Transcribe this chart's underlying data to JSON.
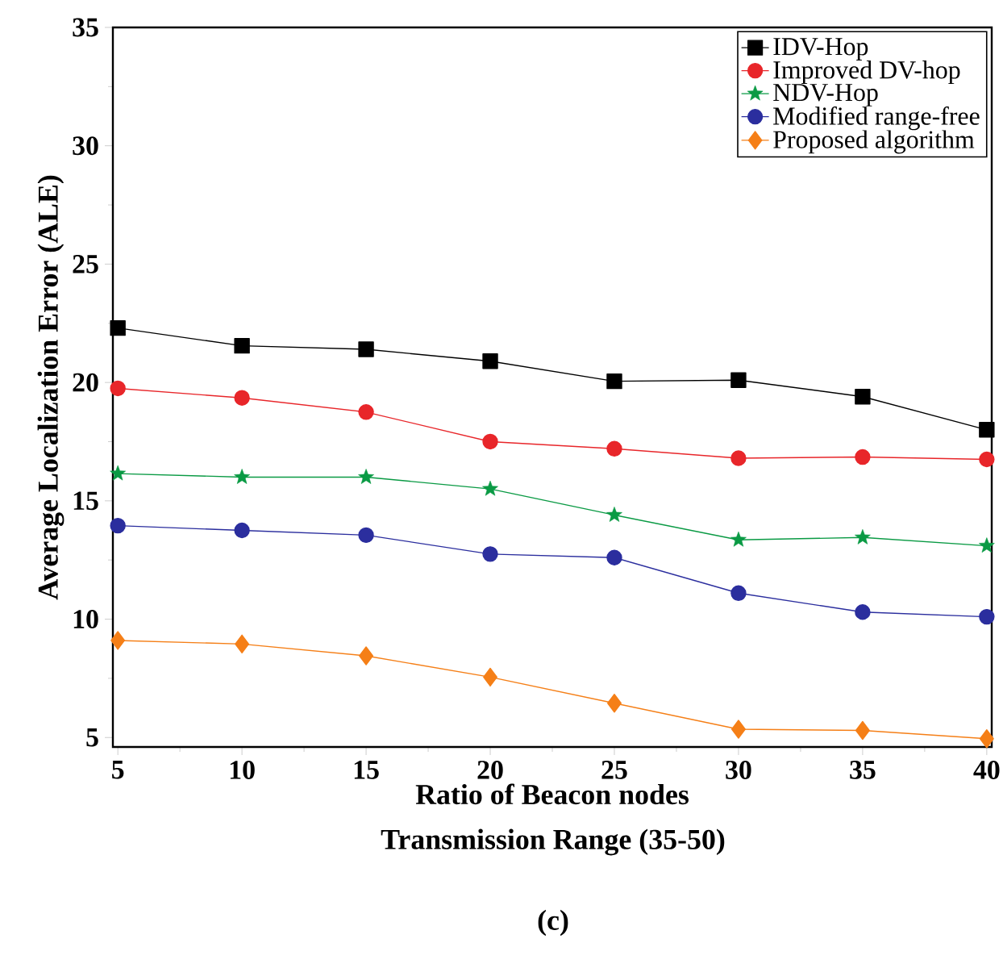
{
  "chart_data": {
    "type": "line",
    "xlabel": "Ratio of Beacon nodes",
    "ylabel": "Average Localization Error (ALE)",
    "annotations": [
      "Transmission Range (35-50)",
      "(c)"
    ],
    "x": [
      5,
      10,
      15,
      20,
      25,
      30,
      35,
      40
    ],
    "xlim": [
      4.8,
      40.2
    ],
    "ylim": [
      4.6,
      35
    ],
    "xticks": [
      5,
      10,
      15,
      20,
      25,
      30,
      35,
      40
    ],
    "yticks": [
      5,
      10,
      15,
      20,
      25,
      30,
      35
    ],
    "legend": "top right",
    "grid": false,
    "line_style": "solid",
    "series": [
      {
        "name": "IDV-Hop",
        "color": "#000000",
        "marker": "square",
        "values": [
          22.3,
          21.55,
          21.4,
          20.9,
          20.05,
          20.1,
          19.4,
          18.0
        ]
      },
      {
        "name": "Improved DV-hop",
        "color": "#e8262a",
        "marker": "circle",
        "values": [
          19.75,
          19.35,
          18.75,
          17.5,
          17.2,
          16.8,
          16.85,
          16.75
        ]
      },
      {
        "name": "NDV-Hop",
        "color": "#0a9a44",
        "marker": "star",
        "values": [
          16.15,
          16.0,
          16.0,
          15.5,
          14.4,
          13.35,
          13.45,
          13.1
        ]
      },
      {
        "name": "Modified range-free",
        "color": "#2b2e9e",
        "marker": "circle",
        "values": [
          13.95,
          13.75,
          13.55,
          12.75,
          12.6,
          11.1,
          10.3,
          10.1
        ]
      },
      {
        "name": "Proposed algorithm",
        "color": "#f57f17",
        "marker": "diamond",
        "values": [
          9.1,
          8.95,
          8.45,
          7.55,
          6.45,
          5.35,
          5.3,
          4.95
        ]
      }
    ]
  }
}
